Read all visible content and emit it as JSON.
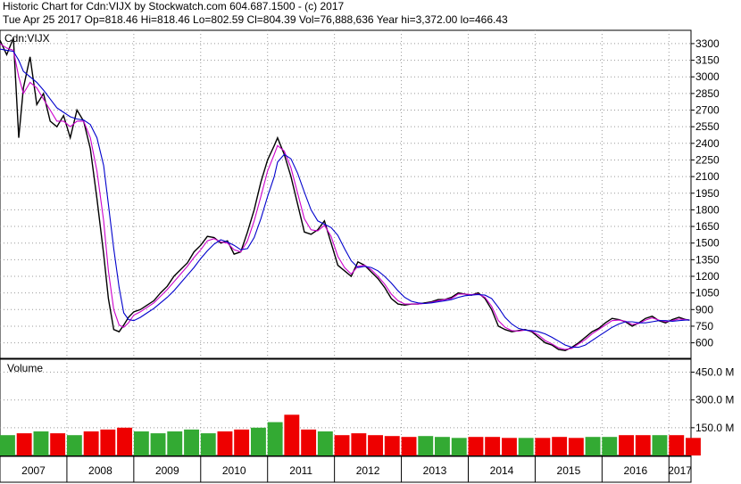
{
  "header": {
    "line1": "Historic Chart for Cdn:VIJX by Stockwatch.com 604.687.1500 - (c) 2017",
    "line2": "Tue Apr 25 2017   Op=818.46   Hi=818.46   Lo=802.59   Cl=804.39   Vol=76,888,636   Year hi=3,372.00   lo=466.43"
  },
  "price_panel": {
    "label": "Cdn:VIJX"
  },
  "volume_panel": {
    "label": "Volume"
  },
  "colors": {
    "price": "#000000",
    "ma_fast": "#cc00cc",
    "ma_slow": "#0000cc",
    "vol_up": "#33aa33",
    "vol_down": "#ee0000",
    "grid": "#999999"
  },
  "chart_data": [
    {
      "type": "line",
      "panel": "price",
      "title": "",
      "y_ticks": [
        600,
        750,
        900,
        1050,
        1200,
        1350,
        1500,
        1650,
        1800,
        1950,
        2100,
        2250,
        2400,
        2550,
        2700,
        2850,
        3000,
        3150,
        3300
      ],
      "ylim": [
        460,
        3420
      ],
      "x_range": [
        2007.0,
        2017.33
      ],
      "year_labels": [
        "2007",
        "2008",
        "2009",
        "2010",
        "2011",
        "2012",
        "2013",
        "2014",
        "2015",
        "2016",
        "2017"
      ],
      "x": [
        2007.0,
        2007.1,
        2007.2,
        2007.28,
        2007.35,
        2007.45,
        2007.55,
        2007.65,
        2007.75,
        2007.85,
        2007.95,
        2008.05,
        2008.15,
        2008.25,
        2008.35,
        2008.45,
        2008.55,
        2008.62,
        2008.7,
        2008.78,
        2008.85,
        2008.92,
        2009.0,
        2009.1,
        2009.2,
        2009.3,
        2009.4,
        2009.5,
        2009.6,
        2009.7,
        2009.8,
        2009.9,
        2010.0,
        2010.1,
        2010.2,
        2010.3,
        2010.4,
        2010.5,
        2010.6,
        2010.7,
        2010.8,
        2010.9,
        2011.0,
        2011.1,
        2011.15,
        2011.25,
        2011.35,
        2011.45,
        2011.55,
        2011.65,
        2011.75,
        2011.85,
        2011.95,
        2012.05,
        2012.15,
        2012.25,
        2012.35,
        2012.45,
        2012.55,
        2012.65,
        2012.75,
        2012.85,
        2012.95,
        2013.05,
        2013.15,
        2013.25,
        2013.35,
        2013.45,
        2013.55,
        2013.65,
        2013.75,
        2013.85,
        2013.95,
        2014.05,
        2014.15,
        2014.25,
        2014.35,
        2014.45,
        2014.55,
        2014.65,
        2014.75,
        2014.85,
        2014.95,
        2015.05,
        2015.15,
        2015.25,
        2015.35,
        2015.45,
        2015.55,
        2015.65,
        2015.75,
        2015.85,
        2015.95,
        2016.05,
        2016.15,
        2016.25,
        2016.35,
        2016.45,
        2016.55,
        2016.65,
        2016.75,
        2016.85,
        2016.95,
        2017.05,
        2017.15,
        2017.25,
        2017.31
      ],
      "series": [
        {
          "values": [
            3330,
            3200,
            3350,
            2450,
            2900,
            3180,
            2750,
            2850,
            2600,
            2550,
            2650,
            2450,
            2700,
            2600,
            2350,
            1900,
            1400,
            1000,
            720,
            700,
            760,
            830,
            880,
            900,
            940,
            980,
            1050,
            1110,
            1200,
            1260,
            1320,
            1420,
            1480,
            1560,
            1550,
            1500,
            1520,
            1400,
            1420,
            1600,
            1800,
            2050,
            2250,
            2380,
            2450,
            2300,
            2100,
            1850,
            1600,
            1580,
            1620,
            1700,
            1500,
            1300,
            1250,
            1200,
            1330,
            1300,
            1240,
            1180,
            1100,
            1000,
            950,
            940,
            950,
            950,
            960,
            970,
            990,
            990,
            1010,
            1050,
            1040,
            1030,
            1050,
            1000,
            900,
            750,
            720,
            700,
            710,
            720,
            700,
            650,
            600,
            580,
            540,
            530,
            560,
            600,
            650,
            700,
            730,
            780,
            820,
            810,
            790,
            750,
            780,
            820,
            840,
            800,
            780,
            810,
            830,
            810,
            804
          ]
        },
        {
          "values": [
            3300,
            3260,
            3240,
            3000,
            2850,
            2950,
            2900,
            2800,
            2700,
            2600,
            2600,
            2550,
            2600,
            2600,
            2450,
            2150,
            1700,
            1250,
            900,
            760,
            740,
            780,
            850,
            880,
            920,
            960,
            1020,
            1080,
            1150,
            1220,
            1290,
            1370,
            1440,
            1520,
            1540,
            1510,
            1500,
            1440,
            1420,
            1520,
            1700,
            1920,
            2150,
            2300,
            2380,
            2330,
            2180,
            1950,
            1720,
            1620,
            1610,
            1660,
            1560,
            1380,
            1280,
            1220,
            1290,
            1300,
            1260,
            1200,
            1130,
            1040,
            980,
            950,
            950,
            950,
            955,
            965,
            980,
            990,
            1000,
            1040,
            1040,
            1035,
            1040,
            1010,
            930,
            800,
            740,
            710,
            705,
            715,
            705,
            670,
            620,
            590,
            555,
            540,
            550,
            590,
            630,
            680,
            720,
            760,
            800,
            805,
            795,
            765,
            775,
            805,
            825,
            805,
            790,
            800,
            815,
            810,
            805
          ]
        },
        {
          "values": [
            3250,
            3240,
            3230,
            3150,
            3050,
            3000,
            2950,
            2880,
            2800,
            2720,
            2680,
            2640,
            2620,
            2610,
            2570,
            2450,
            2200,
            1850,
            1450,
            1100,
            870,
            810,
            800,
            830,
            870,
            910,
            960,
            1010,
            1070,
            1140,
            1210,
            1280,
            1360,
            1430,
            1490,
            1530,
            1510,
            1480,
            1440,
            1450,
            1550,
            1720,
            1920,
            2100,
            2230,
            2300,
            2260,
            2130,
            1960,
            1800,
            1700,
            1670,
            1640,
            1570,
            1450,
            1340,
            1280,
            1290,
            1280,
            1250,
            1200,
            1140,
            1070,
            1010,
            975,
            960,
            955,
            960,
            970,
            980,
            990,
            1010,
            1025,
            1030,
            1035,
            1030,
            1000,
            920,
            830,
            770,
            730,
            715,
            710,
            700,
            680,
            650,
            615,
            580,
            560,
            560,
            580,
            620,
            660,
            700,
            740,
            770,
            790,
            790,
            780,
            780,
            790,
            800,
            800,
            795,
            800,
            805,
            805
          ]
        }
      ]
    },
    {
      "type": "bar",
      "panel": "volume",
      "title": "",
      "ylabel": "Volume",
      "y_ticks": [
        "150.0 M",
        "300.0 M",
        "450.0 M"
      ],
      "y_tick_values": [
        150,
        300,
        450
      ],
      "ylim": [
        0,
        520
      ],
      "x": [
        2007.0,
        2007.25,
        2007.5,
        2007.75,
        2008.0,
        2008.25,
        2008.5,
        2008.75,
        2009.0,
        2009.25,
        2009.5,
        2009.75,
        2010.0,
        2010.25,
        2010.5,
        2010.75,
        2011.0,
        2011.25,
        2011.5,
        2011.75,
        2012.0,
        2012.25,
        2012.5,
        2012.75,
        2013.0,
        2013.25,
        2013.5,
        2013.75,
        2014.0,
        2014.25,
        2014.5,
        2014.75,
        2015.0,
        2015.25,
        2015.5,
        2015.75,
        2016.0,
        2016.25,
        2016.5,
        2016.75,
        2017.0,
        2017.25
      ],
      "values": [
        110,
        120,
        130,
        120,
        110,
        130,
        140,
        150,
        130,
        120,
        130,
        140,
        120,
        130,
        140,
        150,
        180,
        220,
        140,
        130,
        110,
        120,
        110,
        105,
        100,
        105,
        100,
        95,
        100,
        100,
        95,
        95,
        95,
        100,
        95,
        100,
        100,
        110,
        110,
        110,
        110,
        95
      ]
    }
  ]
}
